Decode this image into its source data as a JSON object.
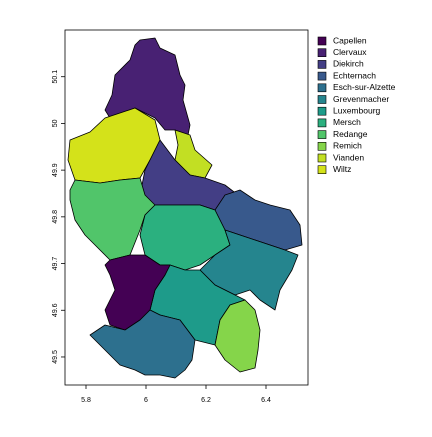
{
  "chart_data": {
    "type": "map",
    "series": [
      {
        "name": "Capellen",
        "color": "#440154"
      },
      {
        "name": "Clervaux",
        "color": "#482173"
      },
      {
        "name": "Diekirch",
        "color": "#433E85"
      },
      {
        "name": "Echternach",
        "color": "#38598C"
      },
      {
        "name": "Esch-sur-Alzette",
        "color": "#2D708E"
      },
      {
        "name": "Grevenmacher",
        "color": "#25858E"
      },
      {
        "name": "Luxembourg",
        "color": "#1E9B8A"
      },
      {
        "name": "Mersch",
        "color": "#2BB07F"
      },
      {
        "name": "Redange",
        "color": "#51C56A"
      },
      {
        "name": "Remich",
        "color": "#85D54A"
      },
      {
        "name": "Vianden",
        "color": "#C2DF23"
      },
      {
        "name": "Wiltz",
        "color": "#D4E21A"
      }
    ],
    "xlim": [
      5.73,
      6.54
    ],
    "xticks": [
      5.8,
      6,
      6.2,
      6.4
    ],
    "ylim": [
      49.44,
      50.2
    ],
    "yticks": [
      49.5,
      49.6,
      49.7,
      49.8,
      49.9,
      50,
      50.1
    ]
  }
}
